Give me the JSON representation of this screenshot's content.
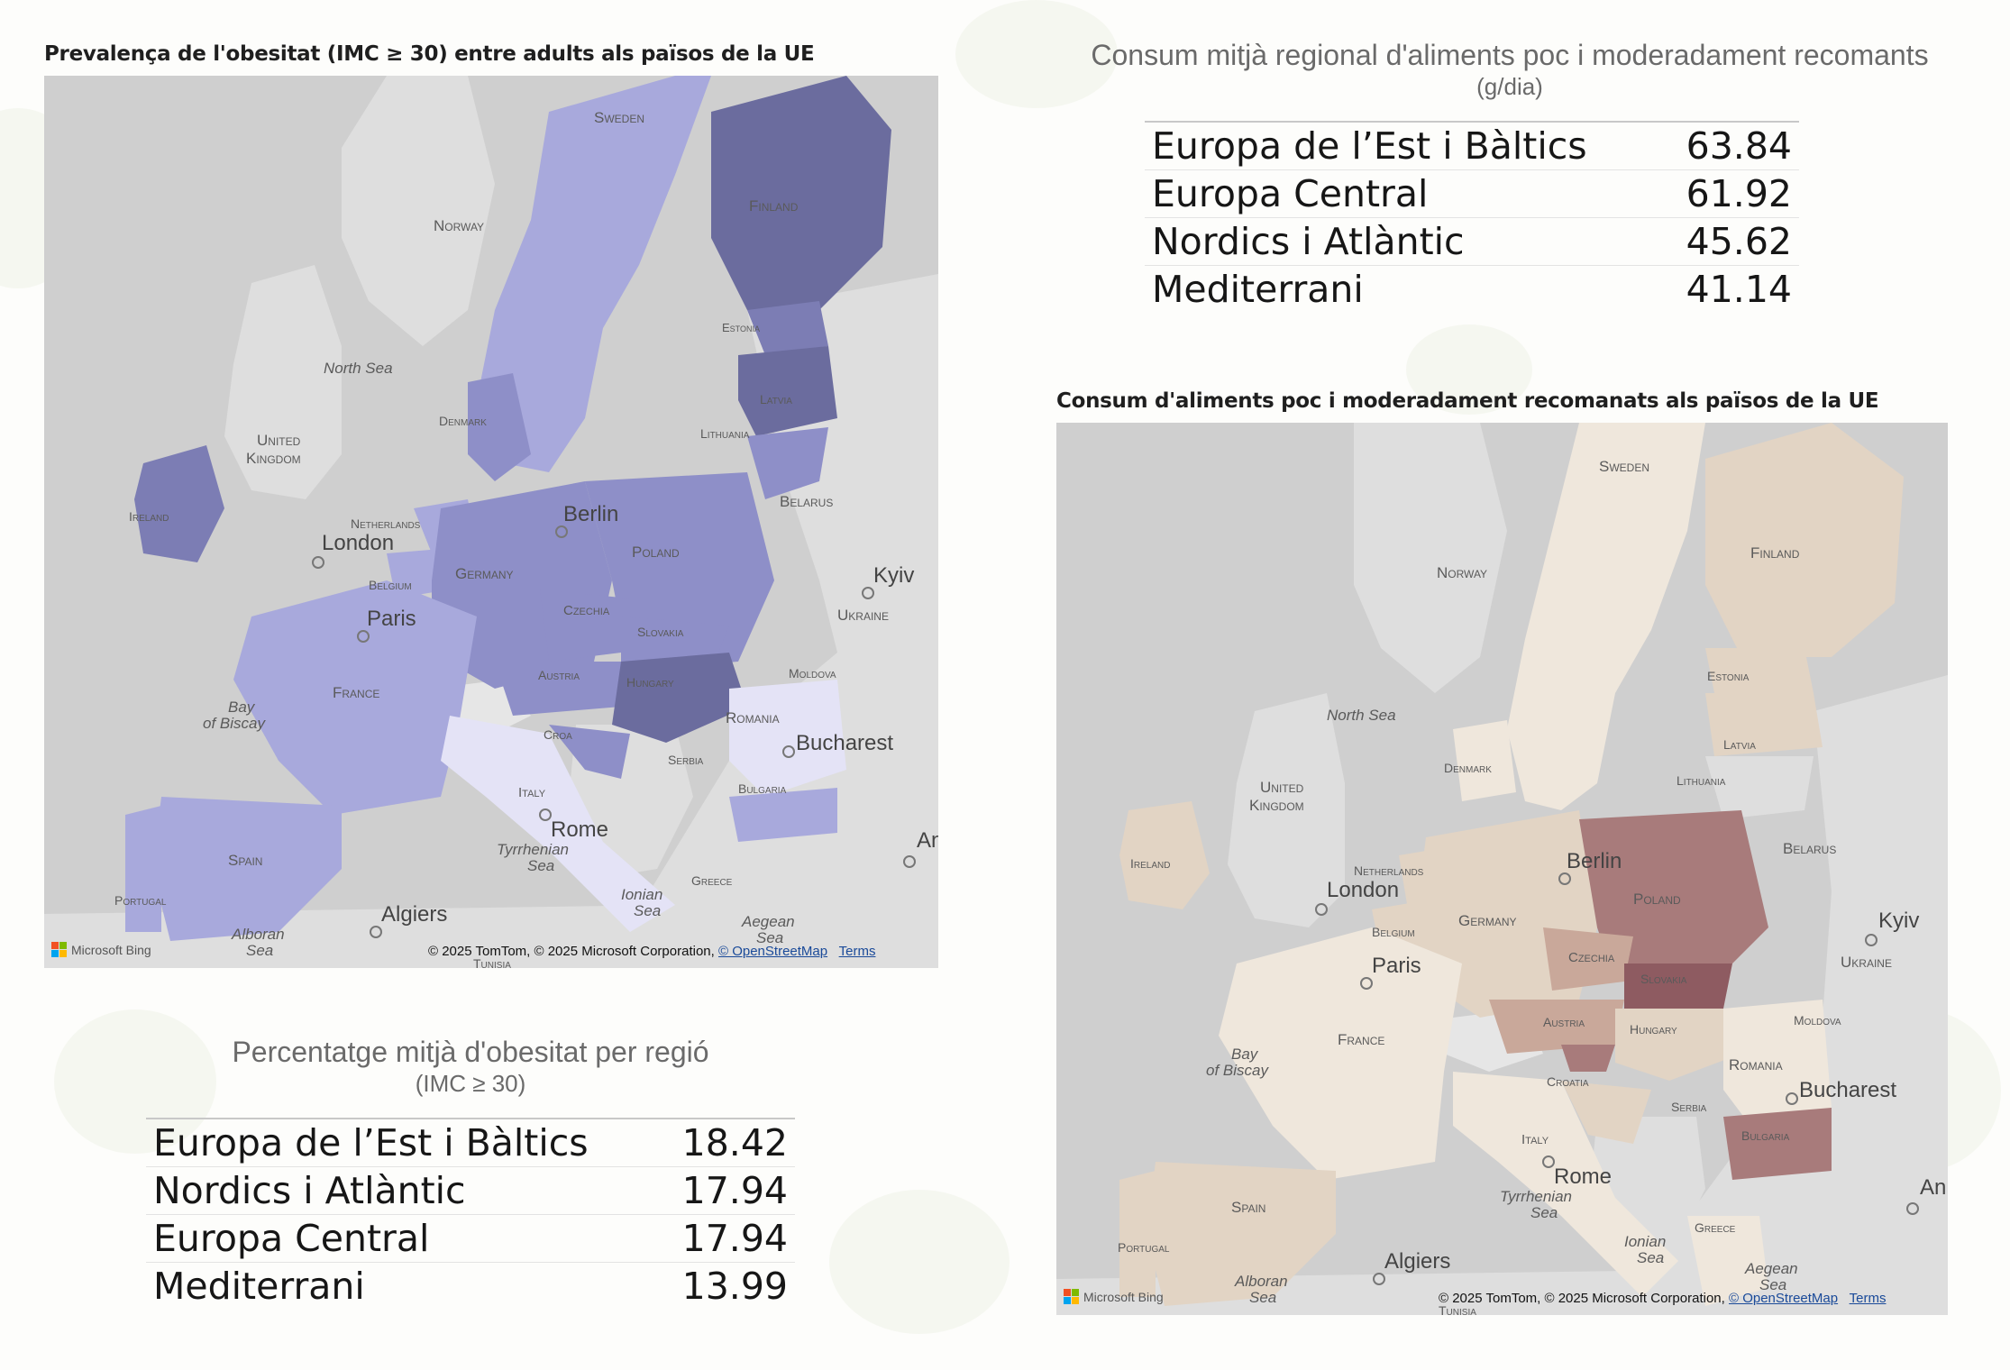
{
  "left": {
    "map_title": "Prevalença de l'obesitat (IMC ≥ 30) entre adults als països de la UE",
    "map_labels": {
      "sweden": "Sweden",
      "norway": "Norway",
      "finland": "Finland",
      "estonia": "Estonia",
      "latvia": "Latvia",
      "lithuania": "Lithuania",
      "belarus": "Belarus",
      "north_sea": "North Sea",
      "denmark": "Denmark",
      "united": "United",
      "kingdom": "Kingdom",
      "ireland": "Ireland",
      "london": "London",
      "netherlands": "Netherlands",
      "berlin": "Berlin",
      "poland": "Poland",
      "kyiv": "Kyiv",
      "ukraine": "Ukraine",
      "belgium": "Belgium",
      "germany": "Germany",
      "czechia": "Czechia",
      "paris": "Paris",
      "slovakia": "Slovakia",
      "moldova": "Moldova",
      "austria": "Austria",
      "hungary": "Hungary",
      "france": "France",
      "bay": "Bay",
      "of_biscay": "of Biscay",
      "romania": "Romania",
      "croatia": "Croa",
      "bucharest": "Bucharest",
      "serbia": "Serbia",
      "italy": "Italy",
      "bulgaria": "Bulgaria",
      "rome": "Rome",
      "spain": "Spain",
      "tyrrhenian": "Tyrrhenian",
      "sea": "Sea",
      "portugal": "Portugal",
      "greece": "Greece",
      "ionian": "Ionian",
      "algiers": "Algiers",
      "alboran": "Alboran",
      "aegean": "Aegean",
      "tunisia": "Tunisia",
      "an": "An"
    },
    "attribution": "© 2025 TomTom, © 2025 Microsoft Corporation,",
    "osm_link": "© OpenStreetMap",
    "terms_link": "Terms",
    "bing_logo": "Microsoft Bing",
    "table_title": "Percentatge mitjà d'obesitat per regió",
    "table_subtitle": "(IMC ≥ 30)",
    "rows": [
      {
        "region": "Europa de l’Est i Bàltics",
        "value": "18.42"
      },
      {
        "region": "Nordics i Atlàntic",
        "value": "17.94"
      },
      {
        "region": "Europa Central",
        "value": "17.94"
      },
      {
        "region": "Mediterrani",
        "value": "13.99"
      }
    ]
  },
  "right": {
    "table_title": "Consum mitjà regional d'aliments poc i moderadament recomants",
    "table_subtitle": "(g/dia)",
    "rows": [
      {
        "region": "Europa de l’Est i Bàltics",
        "value": "63.84"
      },
      {
        "region": "Europa Central",
        "value": "61.92"
      },
      {
        "region": "Nordics i Atlàntic",
        "value": "45.62"
      },
      {
        "region": "Mediterrani",
        "value": "41.14"
      }
    ],
    "map_title": "Consum d'aliments poc i moderadament recomanats als països de la UE",
    "map_labels": {
      "sweden": "Sweden",
      "norway": "Norway",
      "finland": "Finland",
      "estonia": "Estonia",
      "latvia": "Latvia",
      "lithuania": "Lithuania",
      "belarus": "Belarus",
      "north_sea": "North Sea",
      "denmark": "Denmark",
      "united": "United",
      "kingdom": "Kingdom",
      "ireland": "Ireland",
      "london": "London",
      "netherlands": "Netherlands",
      "berlin": "Berlin",
      "poland": "Poland",
      "kyiv": "Kyiv",
      "ukraine": "Ukraine",
      "belgium": "Belgium",
      "germany": "Germany",
      "czechia": "Czechia",
      "paris": "Paris",
      "slovakia": "Slovakia",
      "moldova": "Moldova",
      "austria": "Austria",
      "hungary": "Hungary",
      "france": "France",
      "bay": "Bay",
      "of_biscay": "of Biscay",
      "romania": "Romania",
      "croatia": "Croatia",
      "bucharest": "Bucharest",
      "serbia": "Serbia",
      "italy": "Italy",
      "bulgaria": "Bulgaria",
      "rome": "Rome",
      "spain": "Spain",
      "tyrrhenian": "Tyrrhenian",
      "sea": "Sea",
      "portugal": "Portugal",
      "greece": "Greece",
      "ionian": "Ionian",
      "algiers": "Algiers",
      "alboran": "Alboran",
      "aegean": "Aegean",
      "tunisia": "Tunisia",
      "an": "An"
    },
    "attribution": "© 2025 TomTom, © 2025 Microsoft Corporation,",
    "osm_link": "© OpenStreetMap",
    "terms_link": "Terms",
    "bing_logo": "Microsoft Bing"
  },
  "colors": {
    "blue_scale": [
      "#e4e3f6",
      "#a8a9dc",
      "#8e8fc8",
      "#7c7db4",
      "#6b6c9e"
    ],
    "brown_scale": [
      "#efe7dc",
      "#e2d4c4",
      "#c9a89a",
      "#a87b7b",
      "#8e5b61"
    ],
    "sea": "#cfcfcf",
    "land": "#dedede"
  }
}
